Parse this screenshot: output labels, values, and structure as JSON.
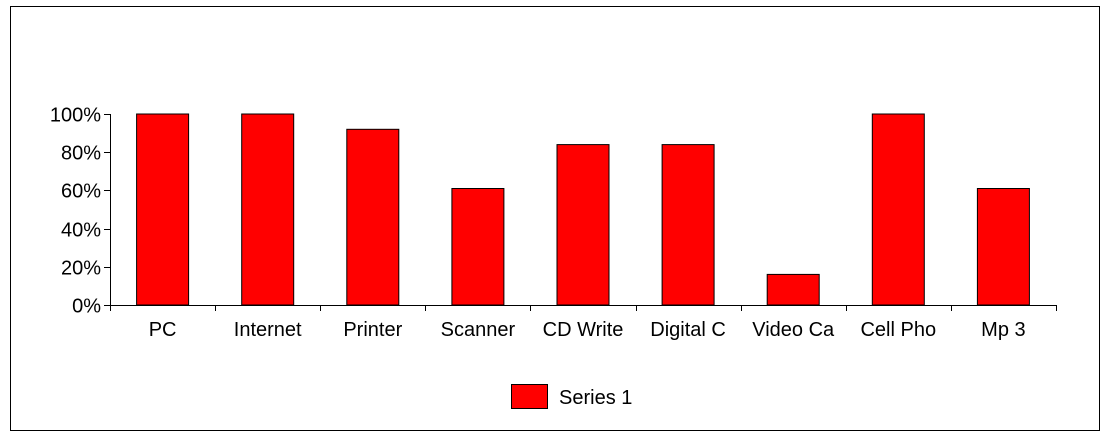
{
  "chart_data": {
    "type": "bar",
    "title": "",
    "xlabel": "",
    "ylabel": "",
    "categories": [
      "PC",
      "Internet",
      "Printer",
      "Scanner",
      "CD Write",
      "Digital C",
      "Video Ca",
      "Cell Pho",
      "Mp 3"
    ],
    "series": [
      {
        "name": "Series 1",
        "color": "#ff0000",
        "values": [
          1.0,
          1.0,
          0.92,
          0.61,
          0.84,
          0.84,
          0.16,
          1.0,
          0.61
        ]
      }
    ],
    "ylim": [
      0,
      1
    ],
    "yticks": [
      0,
      0.2,
      0.4,
      0.6,
      0.8,
      1.0
    ],
    "ytick_labels": [
      "0%",
      "20%",
      "40%",
      "60%",
      "80%",
      "100%"
    ],
    "grid": false,
    "legend": {
      "position": "bottom",
      "entries": [
        "Series 1"
      ]
    }
  }
}
